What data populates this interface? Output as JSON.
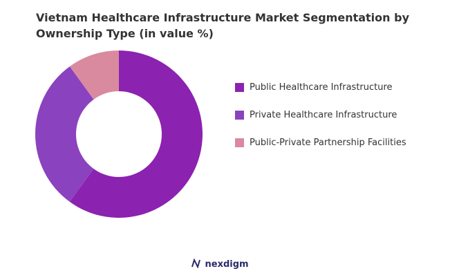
{
  "chart_data": {
    "type": "donut",
    "title": "Vietnam Healthcare Infrastructure Market Segmentation by Ownership Type (in value %)",
    "categories": [
      "Public Healthcare Infrastructure",
      "Private Healthcare Infrastructure",
      "Public-Private Partnership Facilities"
    ],
    "values": [
      60,
      30,
      10
    ],
    "colors": [
      "#8c22b0",
      "#8a42be",
      "#d98a9f"
    ]
  },
  "brand": "nexdigm"
}
